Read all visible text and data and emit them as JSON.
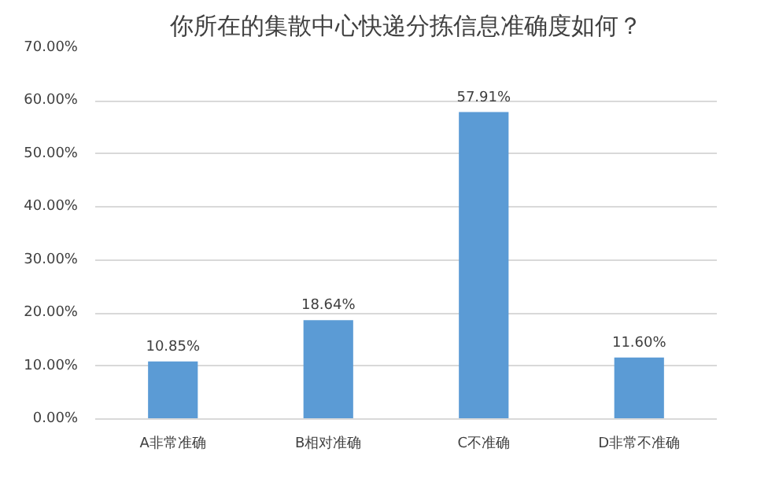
{
  "chart_data": {
    "type": "bar",
    "title": "你所在的集散中心快递分拣信息准确度如何？",
    "categories": [
      "A非常准确",
      "B相对准确",
      "C不准确",
      "D非常不准确"
    ],
    "values": [
      10.85,
      18.64,
      57.91,
      11.6
    ],
    "value_labels": [
      "10.85%",
      "18.64%",
      "57.91%",
      "11.60%"
    ],
    "color": "#5b9bd5",
    "ylim": [
      0,
      70
    ],
    "yticks": [
      {
        "value": 0,
        "label": "0.00%"
      },
      {
        "value": 10,
        "label": "10.00%"
      },
      {
        "value": 20,
        "label": "20.00%"
      },
      {
        "value": 30,
        "label": "30.00%"
      },
      {
        "value": 40,
        "label": "40.00%"
      },
      {
        "value": 50,
        "label": "50.00%"
      },
      {
        "value": 60,
        "label": "60.00%"
      },
      {
        "value": 70,
        "label": "70.00%"
      }
    ],
    "grid": "y"
  }
}
